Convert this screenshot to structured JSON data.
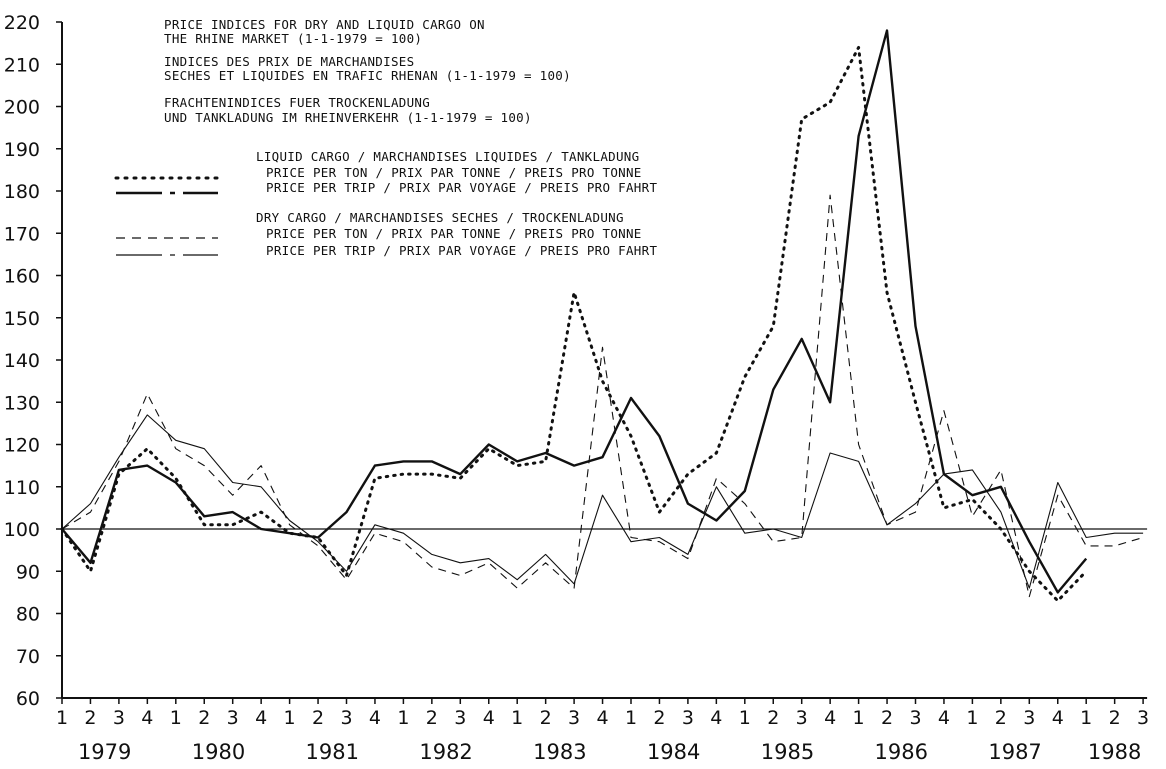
{
  "chart_data": {
    "type": "line",
    "title_blocks": [
      [
        "PRICE INDICES FOR DRY AND LIQUID CARGO ON",
        "THE RHINE MARKET (1-1-1979 = 100)"
      ],
      [
        "INDICES DES PRIX DE MARCHANDISES",
        "SECHES ET LIQUIDES EN TRAFIC RHENAN (1-1-1979 = 100)"
      ],
      [
        "FRACHTENINDICES FUER TROCKENLADUNG",
        "UND TANKLADUNG IM RHEINVERKEHR (1-1-1979 = 100)"
      ]
    ],
    "legend": {
      "liquid_header": "LIQUID CARGO / MARCHANDISES LIQUIDES / TANKLADUNG",
      "dry_header": "DRY CARGO / MARCHANDISES SECHES / TROCKENLADUNG"
    },
    "ylim": [
      60,
      220
    ],
    "yticks": [
      60,
      70,
      80,
      90,
      100,
      110,
      120,
      130,
      140,
      150,
      160,
      170,
      180,
      190,
      200,
      210,
      220
    ],
    "quarters": [
      "1",
      "2",
      "3",
      "4",
      "1",
      "2",
      "3",
      "4",
      "1",
      "2",
      "3",
      "4",
      "1",
      "2",
      "3",
      "4",
      "1",
      "2",
      "3",
      "4",
      "1",
      "2",
      "3",
      "4",
      "1",
      "2",
      "3",
      "4",
      "1",
      "2",
      "3",
      "4",
      "1",
      "2",
      "3",
      "4",
      "1",
      "2",
      "3"
    ],
    "years": [
      "1979",
      "1980",
      "1981",
      "1982",
      "1983",
      "1984",
      "1985",
      "1986",
      "1987",
      "1988"
    ],
    "reference_line": 100,
    "series": [
      {
        "name": "PRICE PER TON / PRIX PAR TONNE / PREIS PRO TONNE",
        "group": "liquid",
        "style": "dotted",
        "values": [
          100,
          90,
          113,
          119,
          112,
          101,
          101,
          104,
          99,
          98,
          89,
          112,
          113,
          113,
          112,
          119,
          115,
          116,
          156,
          135,
          122,
          104,
          113,
          118,
          136,
          148,
          197,
          201,
          214,
          156,
          130,
          105,
          107,
          100,
          90,
          83,
          90,
          null,
          null
        ]
      },
      {
        "name": "PRICE PER TRIP / PRIX PAR VOYAGE / PREIS PRO FAHRT",
        "group": "liquid",
        "style": "solid",
        "values": [
          100,
          92,
          114,
          115,
          111,
          103,
          104,
          100,
          99,
          98,
          104,
          115,
          116,
          116,
          113,
          120,
          116,
          118,
          115,
          117,
          131,
          122,
          106,
          102,
          109,
          133,
          145,
          130,
          193,
          218,
          148,
          113,
          108,
          110,
          97,
          85,
          93,
          null,
          null
        ]
      },
      {
        "name": "PRICE PER TON / PRIX PAR TONNE / PREIS PRO TONNE",
        "group": "dry",
        "style": "dashed",
        "values": [
          100,
          104,
          116,
          132,
          119,
          115,
          108,
          115,
          101,
          96,
          88,
          99,
          97,
          91,
          89,
          92,
          86,
          92,
          86,
          143,
          98,
          97,
          93,
          112,
          106,
          97,
          98,
          179,
          120,
          101,
          104,
          128,
          103,
          114,
          84,
          108,
          96,
          96,
          98
        ]
      },
      {
        "name": "PRICE PER TRIP / PRIX PAR VOYAGE / PREIS PRO FAHRT",
        "group": "dry",
        "style": "dashdot",
        "values": [
          100,
          106,
          117,
          127,
          121,
          119,
          111,
          110,
          102,
          97,
          90,
          101,
          99,
          94,
          92,
          93,
          88,
          94,
          87,
          108,
          97,
          98,
          94,
          110,
          99,
          100,
          98,
          118,
          116,
          101,
          106,
          113,
          114,
          104,
          86,
          111,
          98,
          99,
          99
        ]
      }
    ]
  }
}
